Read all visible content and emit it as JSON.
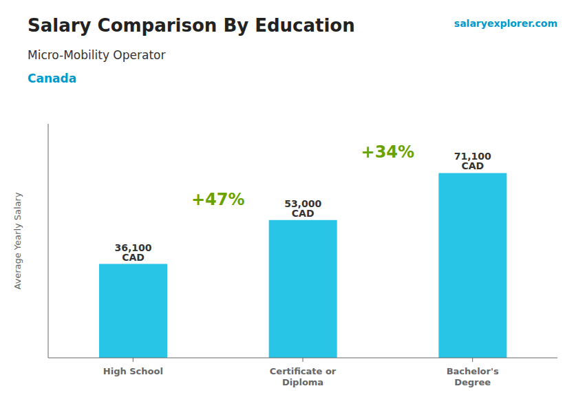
{
  "chart_data": {
    "type": "bar",
    "title": "Salary Comparison By Education",
    "subtitle": "Micro-Mobility Operator",
    "ylabel": "Average Yearly Salary",
    "annotations": [
      "Canada",
      "salaryexplorer.com",
      "+47%",
      "+34%"
    ],
    "categories": [
      "High School",
      "Certificate or\nDiploma",
      "Bachelor's\nDegree"
    ],
    "values": [
      36100,
      53000,
      71100
    ],
    "value_labels": [
      "36,100 CAD",
      "53,000 CAD",
      "71,100 CAD"
    ],
    "data_labels": true,
    "color": "#29c5e6",
    "ylim": [
      0,
      90000
    ],
    "tick_labels": "x",
    "grid": false
  }
}
